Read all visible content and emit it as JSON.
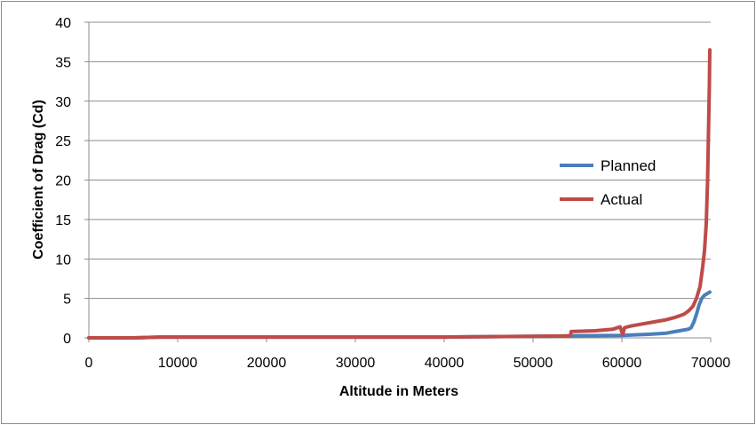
{
  "chart_data": {
    "type": "line",
    "xlabel": "Altitude in Meters",
    "ylabel": "Coefficient of Drag (Cd)",
    "xlim": [
      0,
      70000
    ],
    "ylim": [
      0,
      40
    ],
    "x_ticks": [
      "0",
      "10000",
      "20000",
      "30000",
      "40000",
      "50000",
      "60000",
      "70000"
    ],
    "y_ticks": [
      "0",
      "5",
      "10",
      "15",
      "20",
      "25",
      "30",
      "35",
      "40"
    ],
    "grid": "horizontal",
    "legend_position": "right",
    "series": [
      {
        "name": "Planned",
        "color": "#4a7ebb",
        "x": [
          0,
          5000,
          8000,
          20000,
          40000,
          50000,
          54000,
          60000,
          63000,
          65000,
          66000,
          67000,
          67500,
          67800,
          68100,
          68400,
          68700,
          69000,
          69300,
          69600,
          69900
        ],
        "y": [
          0.0,
          0.0,
          0.1,
          0.1,
          0.1,
          0.2,
          0.25,
          0.3,
          0.45,
          0.6,
          0.8,
          1.0,
          1.1,
          1.3,
          2.0,
          3.0,
          4.2,
          5.0,
          5.4,
          5.6,
          5.8
        ]
      },
      {
        "name": "Actual",
        "color": "#be4b48",
        "x": [
          0,
          5000,
          8000,
          20000,
          40000,
          50000,
          54200,
          54300,
          57000,
          59000,
          59800,
          60100,
          60300,
          61000,
          63000,
          65000,
          66000,
          67000,
          67500,
          68000,
          68400,
          68800,
          69100,
          69300,
          69500,
          69650,
          69750,
          69850,
          69900
        ],
        "y": [
          0.0,
          0.0,
          0.1,
          0.1,
          0.1,
          0.2,
          0.25,
          0.8,
          0.9,
          1.1,
          1.4,
          0.4,
          1.3,
          1.5,
          1.9,
          2.3,
          2.6,
          3.0,
          3.4,
          4.0,
          5.0,
          6.5,
          9.0,
          11.0,
          14.5,
          20.0,
          26.0,
          32.0,
          36.5
        ]
      }
    ]
  }
}
